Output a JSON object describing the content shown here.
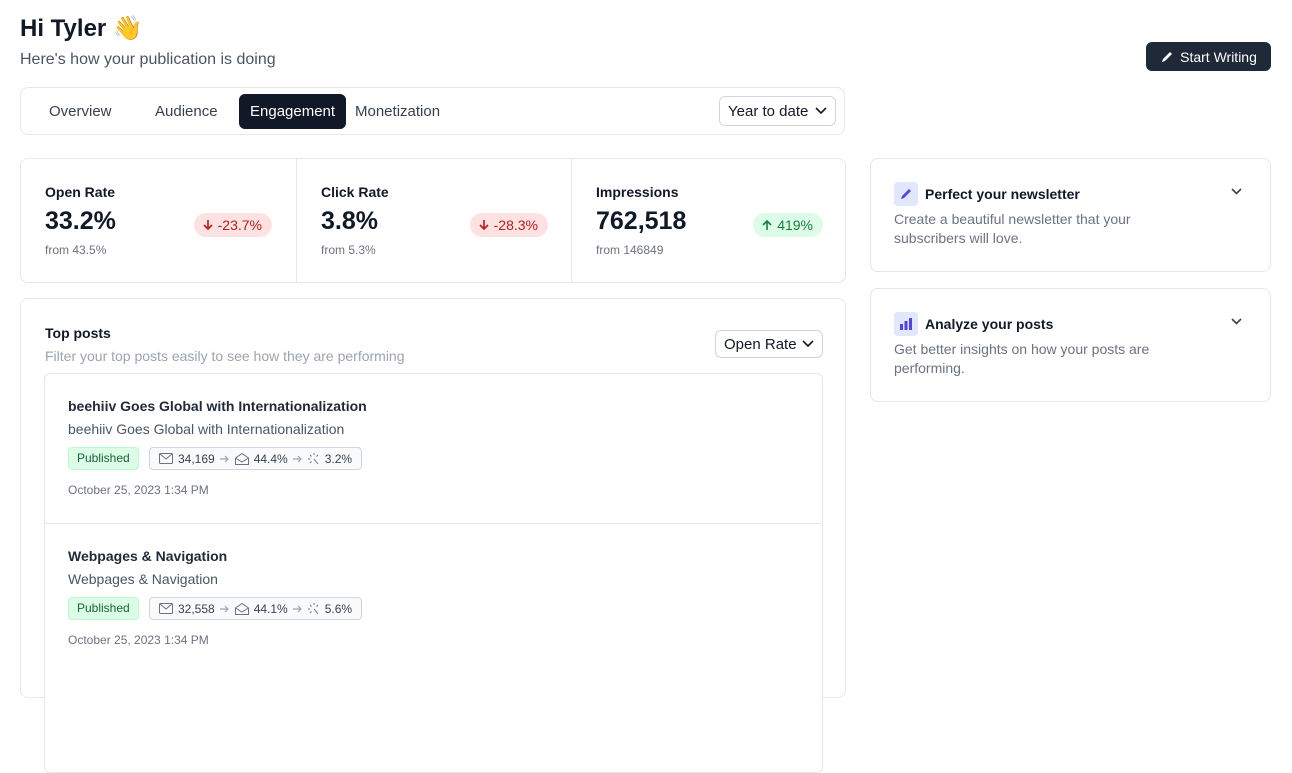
{
  "header": {
    "greeting": "Hi Tyler 👋",
    "subtitle": "Here's how your publication is doing",
    "action": "Start Writing"
  },
  "tabs": {
    "items": [
      "Overview",
      "Audience",
      "Engagement",
      "Monetization"
    ],
    "active": 2,
    "range": "Year to date"
  },
  "metrics": [
    {
      "label": "Open Rate",
      "value": "33.2%",
      "change": "-23.7%",
      "direction": "down",
      "from": "from 43.5%"
    },
    {
      "label": "Click Rate",
      "value": "3.8%",
      "change": "-28.3%",
      "direction": "down",
      "from": "from 5.3%"
    },
    {
      "label": "Impressions",
      "value": "762,518",
      "change": "419%",
      "direction": "up",
      "from": "from 146849"
    }
  ],
  "top_posts": {
    "title": "Top posts",
    "subtitle": "Filter your top posts easily to see how they are performing",
    "sort": "Open Rate",
    "posts": [
      {
        "title": "beehiiv Goes Global with Internationalization",
        "subtitle": "beehiiv Goes Global with Internationalization",
        "status": "Published",
        "sent": "34,169",
        "opens": "44.4%",
        "clicks": "3.2%",
        "date": "October 25, 2023 1:34 PM"
      },
      {
        "title": "Webpages & Navigation",
        "subtitle": "Webpages & Navigation",
        "status": "Published",
        "sent": "32,558",
        "opens": "44.1%",
        "clicks": "5.6%",
        "date": "October 25, 2023 1:34 PM"
      }
    ]
  },
  "cards": [
    {
      "title": "Perfect your newsletter",
      "text": "Create a beautiful newsletter that your subscribers will love."
    },
    {
      "title": "Analyze your posts",
      "text": "Get better insights on how your posts are performing."
    }
  ]
}
